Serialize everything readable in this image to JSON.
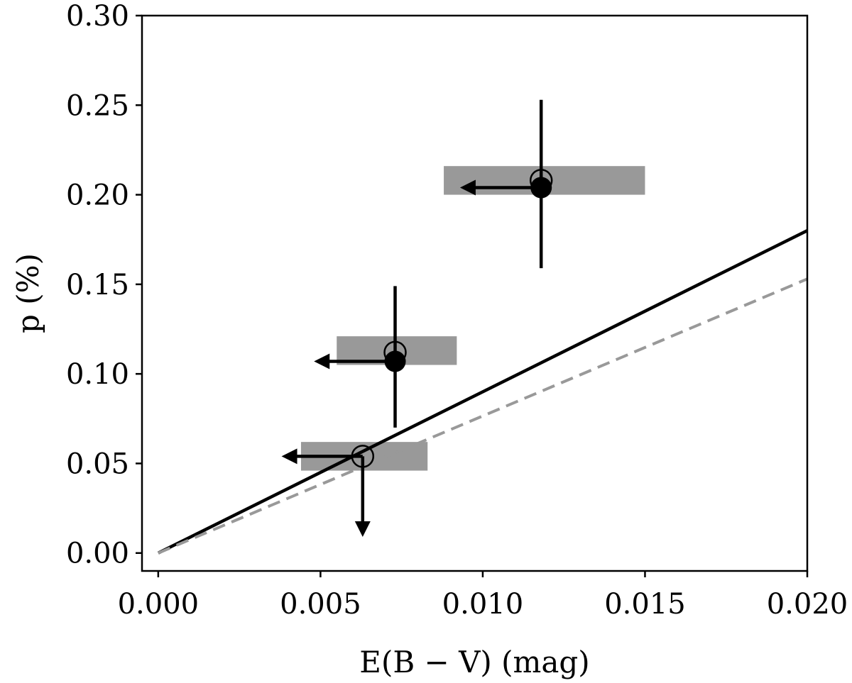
{
  "chart_data": {
    "type": "scatter",
    "xlabel": "E(B − V) (mag)",
    "ylabel": "p (%)",
    "xlim": [
      -0.0005,
      0.02
    ],
    "ylim": [
      -0.01,
      0.3
    ],
    "x_ticks": [
      0.0,
      0.005,
      0.01,
      0.015,
      0.02
    ],
    "x_tick_labels": [
      "0.000",
      "0.005",
      "0.010",
      "0.015",
      "0.020"
    ],
    "y_ticks": [
      0.0,
      0.05,
      0.1,
      0.15,
      0.2,
      0.25,
      0.3
    ],
    "y_tick_labels": [
      "0.00",
      "0.05",
      "0.10",
      "0.15",
      "0.20",
      "0.25",
      "0.30"
    ],
    "grid": false,
    "x_uncertainty_bands": [
      {
        "x0": 0.0088,
        "x1": 0.015,
        "y0": 0.2,
        "y1": 0.216
      },
      {
        "x0": 0.0055,
        "x1": 0.0092,
        "y0": 0.105,
        "y1": 0.121
      },
      {
        "x0": 0.0044,
        "x1": 0.0083,
        "y0": 0.046,
        "y1": 0.062
      }
    ],
    "points": [
      {
        "x": 0.0118,
        "y": 0.208,
        "marker": "open-circle"
      },
      {
        "x": 0.0118,
        "y": 0.204,
        "marker": "filled-circle",
        "yerr": [
          0.159,
          0.253
        ],
        "x_upper_limit_arrow_to": 0.0093
      },
      {
        "x": 0.0073,
        "y": 0.112,
        "marker": "open-circle"
      },
      {
        "x": 0.0073,
        "y": 0.107,
        "marker": "filled-circle",
        "yerr": [
          0.07,
          0.149
        ],
        "x_upper_limit_arrow_to": 0.0048
      },
      {
        "x": 0.0063,
        "y": 0.054,
        "marker": "open-circle",
        "x_upper_limit_arrow_to": 0.0038,
        "y_upper_limit_arrow_to": 0.009
      }
    ],
    "lines": [
      {
        "style": "solid",
        "color": "#000000",
        "x": [
          0.0,
          0.02
        ],
        "y": [
          0.0,
          0.18
        ]
      },
      {
        "style": "dashed",
        "color": "#999999",
        "x": [
          0.0,
          0.02
        ],
        "y": [
          0.0,
          0.153
        ]
      }
    ],
    "colors": {
      "band": "#999999",
      "marker": "#000000",
      "dashed_line": "#999999"
    }
  }
}
